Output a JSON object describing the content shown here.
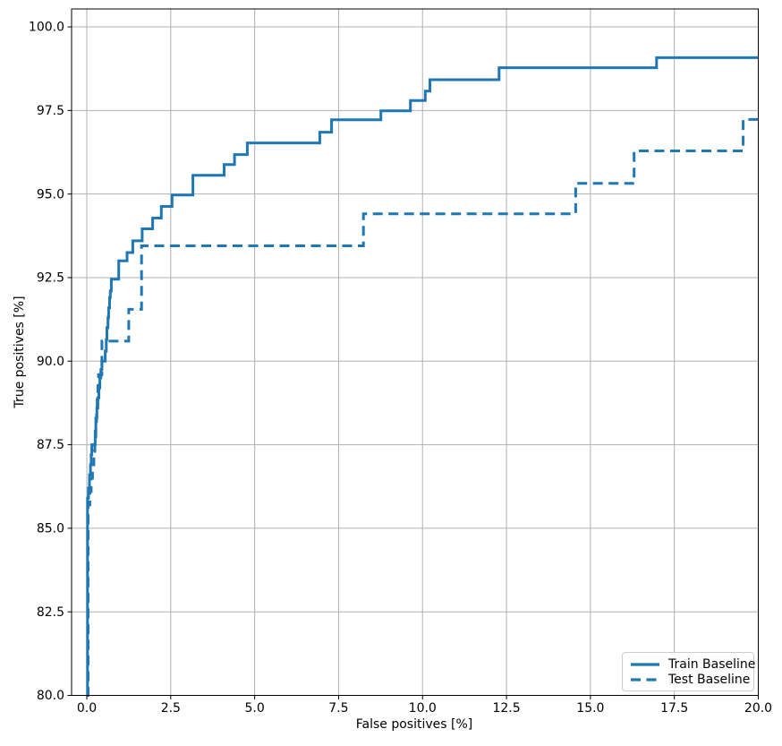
{
  "figure": {
    "background": "#ffffff",
    "text_color": "#000000"
  },
  "chart_data": {
    "type": "line",
    "title": "",
    "xlabel": "False positives [%]",
    "ylabel": "True positives [%]",
    "xlim": [
      -0.4533,
      20
    ],
    "ylim": [
      80,
      100.537
    ],
    "grid": true,
    "grid_color": "#b0b0b0",
    "spine_color": "#000000",
    "legend_position": "lower right",
    "x_ticks": {
      "values": [
        0,
        2.5,
        5,
        7.5,
        10,
        12.5,
        15,
        17.5,
        20
      ],
      "labels": [
        "0.0",
        "2.5",
        "5.0",
        "7.5",
        "10.0",
        "12.5",
        "15.0",
        "17.5",
        "20.0"
      ]
    },
    "y_ticks": {
      "values": [
        80,
        82.5,
        85,
        87.5,
        90,
        92.5,
        95,
        97.5,
        100
      ],
      "labels": [
        "80.0",
        "82.5",
        "85.0",
        "87.5",
        "90.0",
        "92.5",
        "95.0",
        "97.5",
        "100.0"
      ]
    },
    "series": [
      {
        "name": "Train Baseline",
        "style": "solid",
        "color": "#1f77b4",
        "line_width": 3,
        "step": "post",
        "points": [
          [
            0,
            80
          ],
          [
            0.02,
            85.9
          ],
          [
            0.05,
            86.2
          ],
          [
            0.08,
            86.6
          ],
          [
            0.11,
            86.9
          ],
          [
            0.13,
            87.2
          ],
          [
            0.15,
            87.5
          ],
          [
            0.25,
            87.9
          ],
          [
            0.27,
            88.3
          ],
          [
            0.3,
            88.6
          ],
          [
            0.33,
            88.9
          ],
          [
            0.36,
            89.2
          ],
          [
            0.39,
            89.5
          ],
          [
            0.42,
            89.75
          ],
          [
            0.45,
            90.0
          ],
          [
            0.55,
            90.3
          ],
          [
            0.58,
            90.65
          ],
          [
            0.6,
            91.0
          ],
          [
            0.63,
            91.3
          ],
          [
            0.65,
            91.6
          ],
          [
            0.68,
            91.9
          ],
          [
            0.7,
            92.1
          ],
          [
            0.73,
            92.45
          ],
          [
            0.95,
            93.0
          ],
          [
            1.2,
            93.25
          ],
          [
            1.37,
            93.6
          ],
          [
            1.65,
            93.96
          ],
          [
            1.96,
            94.28
          ],
          [
            2.22,
            94.63
          ],
          [
            2.54,
            94.97
          ],
          [
            3.16,
            95.56
          ],
          [
            4.09,
            95.88
          ],
          [
            4.4,
            96.18
          ],
          [
            4.78,
            96.53
          ],
          [
            6.94,
            96.85
          ],
          [
            7.29,
            97.22
          ],
          [
            8.76,
            97.49
          ],
          [
            9.64,
            97.8
          ],
          [
            10.08,
            98.08
          ],
          [
            10.22,
            98.42
          ],
          [
            12.28,
            98.78
          ],
          [
            16.97,
            99.08
          ],
          [
            20,
            99.08
          ]
        ]
      },
      {
        "name": "Test Baseline",
        "style": "dashed",
        "color": "#1f77b4",
        "line_width": 3,
        "step": "post",
        "points": [
          [
            0,
            80
          ],
          [
            0.04,
            85.7
          ],
          [
            0.09,
            86.1
          ],
          [
            0.13,
            86.5
          ],
          [
            0.17,
            86.9
          ],
          [
            0.21,
            87.3
          ],
          [
            0.24,
            87.7
          ],
          [
            0.27,
            88.1
          ],
          [
            0.29,
            88.5
          ],
          [
            0.31,
            88.9
          ],
          [
            0.33,
            89.25
          ],
          [
            0.35,
            89.6
          ],
          [
            0.45,
            90.6
          ],
          [
            1.25,
            91.55
          ],
          [
            1.63,
            93.45
          ],
          [
            8.24,
            94.41
          ],
          [
            14.56,
            95.32
          ],
          [
            16.3,
            96.29
          ],
          [
            19.55,
            97.23
          ],
          [
            20,
            97.23
          ]
        ]
      }
    ]
  }
}
